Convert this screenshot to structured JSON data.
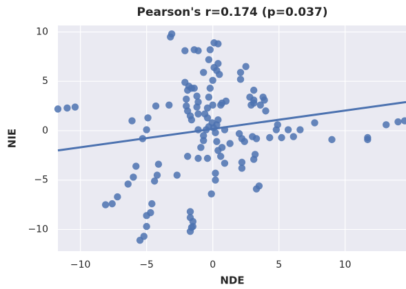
{
  "chart_data": {
    "type": "scatter",
    "title": "Pearson's r=0.174 (p=0.037)",
    "xlabel": "NDE",
    "ylabel": "NIE",
    "xlim": [
      -11.7,
      14.6
    ],
    "ylim": [
      -12.2,
      10.66
    ],
    "xticks": [
      {
        "value": -10,
        "label": "−10"
      },
      {
        "value": -5,
        "label": "−5"
      },
      0,
      5,
      10
    ],
    "yticks": [
      {
        "value": -10,
        "label": "−10"
      },
      {
        "value": -5,
        "label": "−5"
      },
      0,
      5,
      10
    ],
    "grid": true,
    "series": [
      {
        "color": "#4c72b0",
        "x": [
          -11.7,
          -11.0,
          -10.4,
          -6.1,
          -4.9,
          -5.0,
          -5.3,
          -4.3,
          -3.3,
          -5.8,
          -6.0,
          -6.4,
          -4.1,
          -4.2,
          -4.4,
          -2.7,
          -7.2,
          -7.6,
          -8.1,
          -4.6,
          -4.7,
          -5.0,
          -5.0,
          -5.2,
          -5.5,
          -3.1,
          -3.2,
          -2.1,
          -1.4,
          -1.1,
          -2.1,
          -1.8,
          -1.6,
          -1.9,
          -1.4,
          -1.2,
          -2.0,
          -1.1,
          -2.0,
          -1.2,
          -1.9,
          -1.1,
          -1.7,
          -1.6,
          -1.1,
          -1.9,
          -1.1,
          -0.9,
          -0.7,
          -0.7,
          -0.6,
          -0.4,
          -0.3,
          -0.2,
          -0.7,
          -0.3,
          -0.2,
          0.1,
          0.4,
          0.1,
          0.4,
          0.3,
          0.5,
          0.0,
          0.0,
          -0.4,
          -0.3,
          -0.05,
          0.05,
          0.2,
          0.3,
          0.4,
          -0.5,
          0.6,
          1.0,
          0.7,
          0.9,
          0.3,
          0.4,
          0.7,
          0.9,
          1.3,
          0.2,
          0.2,
          -0.1,
          -0.4,
          0.6,
          -1.7,
          -1.7,
          -1.5,
          -1.5,
          -1.6,
          -1.7,
          2.5,
          2.1,
          2.1,
          3.1,
          2.8,
          3.1,
          2.9,
          3.1,
          3.8,
          3.9,
          3.6,
          4.0,
          2.0,
          2.2,
          2.4,
          3.0,
          3.3,
          4.3,
          4.8,
          4.9,
          5.2,
          5.7,
          6.1,
          6.6,
          7.7,
          9.0,
          3.2,
          3.1,
          2.2,
          2.2,
          3.5,
          3.3,
          11.7,
          11.7,
          13.1,
          14.0,
          14.5
        ],
        "y": [
          2.2,
          2.3,
          2.4,
          1.0,
          1.3,
          0.1,
          -0.8,
          2.5,
          2.6,
          -3.6,
          -4.7,
          -5.4,
          -3.4,
          -4.5,
          -5.1,
          -4.5,
          -6.7,
          -7.4,
          -7.5,
          -7.4,
          -8.3,
          -8.6,
          -9.7,
          -10.7,
          -11.1,
          9.8,
          9.5,
          8.1,
          8.2,
          8.1,
          4.9,
          4.5,
          4.3,
          4.1,
          4.3,
          3.5,
          3.2,
          2.9,
          2.5,
          2.4,
          2.0,
          1.7,
          1.5,
          1.1,
          0.1,
          -2.6,
          -2.8,
          -1.7,
          -1.0,
          -0.5,
          1.7,
          2.3,
          3.4,
          4.3,
          5.9,
          7.2,
          8.2,
          8.9,
          8.8,
          6.4,
          6.8,
          6.1,
          5.7,
          5.1,
          2.6,
          1.3,
          0.4,
          0.8,
          0.3,
          -0.2,
          0.6,
          1.1,
          0.1,
          2.6,
          3.0,
          2.8,
          0.1,
          -1.1,
          -2.0,
          -1.7,
          -3.3,
          -1.3,
          -4.3,
          -5.0,
          -6.4,
          -2.8,
          -2.6,
          -8.2,
          -8.8,
          -9.2,
          -9.7,
          -9.8,
          -10.2,
          6.5,
          5.9,
          5.2,
          4.1,
          3.4,
          3.1,
          2.6,
          2.8,
          3.4,
          3.1,
          2.6,
          2.0,
          -0.3,
          -0.8,
          -1.1,
          -0.6,
          -0.8,
          -0.7,
          0.1,
          0.6,
          -0.7,
          0.1,
          -0.6,
          0.1,
          0.8,
          -0.9,
          -2.4,
          -2.9,
          -3.2,
          -3.8,
          -5.6,
          -5.9,
          -0.7,
          -0.9,
          0.6,
          0.9,
          1.0
        ]
      }
    ],
    "regression": {
      "color": "#4c72b0",
      "x": [
        -11.7,
        14.6
      ],
      "y": [
        -2.0,
        2.9
      ]
    }
  }
}
